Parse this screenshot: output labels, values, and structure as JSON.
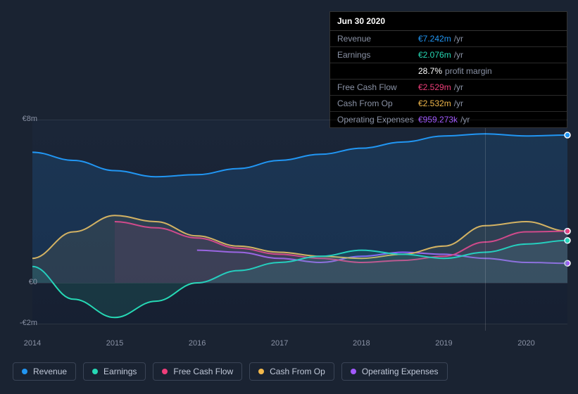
{
  "chart": {
    "type": "area-line",
    "background_color": "#1a2332",
    "plot_background": "linear-gradient(180deg, rgba(30,45,70,0.3), rgba(20,30,50,0.6))",
    "grid_color": "rgba(255,255,255,0.08)",
    "axis_label_color": "#8a92a5",
    "axis_fontsize": 11,
    "y_axis": {
      "ticks": [
        {
          "value": 8,
          "label": "€8m"
        },
        {
          "value": 0,
          "label": "€0"
        },
        {
          "value": -2,
          "label": "-€2m"
        }
      ],
      "min": -2,
      "max": 8
    },
    "x_axis": {
      "labels": [
        "2014",
        "2015",
        "2016",
        "2017",
        "2018",
        "2019",
        "2020"
      ],
      "positions": [
        0,
        0.154,
        0.308,
        0.462,
        0.615,
        0.769,
        0.923
      ]
    },
    "vertical_marker_x": 0.846,
    "series": [
      {
        "name": "Revenue",
        "color": "#2196f3",
        "fill_opacity": 0.15,
        "line_width": 2,
        "data": [
          6.4,
          6.0,
          5.5,
          5.2,
          5.3,
          5.6,
          6.0,
          6.3,
          6.6,
          6.9,
          7.2,
          7.3,
          7.2,
          7.242
        ]
      },
      {
        "name": "Earnings",
        "color": "#26d9b5",
        "fill_opacity": 0.12,
        "line_width": 2,
        "data": [
          0.8,
          -0.8,
          -1.7,
          -0.9,
          0.0,
          0.6,
          1.0,
          1.3,
          1.6,
          1.4,
          1.2,
          1.5,
          1.9,
          2.076
        ]
      },
      {
        "name": "Free Cash Flow",
        "color": "#ef3e7a",
        "fill_opacity": 0.1,
        "line_width": 2,
        "data": [
          null,
          null,
          3.0,
          2.7,
          2.2,
          1.7,
          1.4,
          1.2,
          1.0,
          1.1,
          1.3,
          2.0,
          2.5,
          2.529
        ]
      },
      {
        "name": "Cash From Op",
        "color": "#f2b84b",
        "fill_opacity": 0.1,
        "line_width": 2,
        "data": [
          1.2,
          2.5,
          3.3,
          3.0,
          2.3,
          1.8,
          1.5,
          1.3,
          1.2,
          1.4,
          1.8,
          2.8,
          3.0,
          2.532
        ]
      },
      {
        "name": "Operating Expenses",
        "color": "#a259ff",
        "fill_opacity": 0.0,
        "line_width": 2,
        "data": [
          null,
          null,
          null,
          null,
          1.6,
          1.5,
          1.2,
          1.0,
          1.3,
          1.5,
          1.4,
          1.2,
          1.0,
          0.959
        ]
      }
    ]
  },
  "tooltip": {
    "date": "Jun 30 2020",
    "rows": [
      {
        "label": "Revenue",
        "value": "€7.242m",
        "unit": "/yr",
        "color": "#2196f3"
      },
      {
        "label": "Earnings",
        "value": "€2.076m",
        "unit": "/yr",
        "color": "#26d9b5"
      },
      {
        "label": "",
        "value": "28.7%",
        "unit": "profit margin",
        "color": "#ffffff"
      },
      {
        "label": "Free Cash Flow",
        "value": "€2.529m",
        "unit": "/yr",
        "color": "#ef3e7a"
      },
      {
        "label": "Cash From Op",
        "value": "€2.532m",
        "unit": "/yr",
        "color": "#f2b84b"
      },
      {
        "label": "Operating Expenses",
        "value": "€959.273k",
        "unit": "/yr",
        "color": "#a259ff"
      }
    ]
  },
  "legend": {
    "items": [
      {
        "label": "Revenue",
        "color": "#2196f3"
      },
      {
        "label": "Earnings",
        "color": "#26d9b5"
      },
      {
        "label": "Free Cash Flow",
        "color": "#ef3e7a"
      },
      {
        "label": "Cash From Op",
        "color": "#f2b84b"
      },
      {
        "label": "Operating Expenses",
        "color": "#a259ff"
      }
    ]
  }
}
